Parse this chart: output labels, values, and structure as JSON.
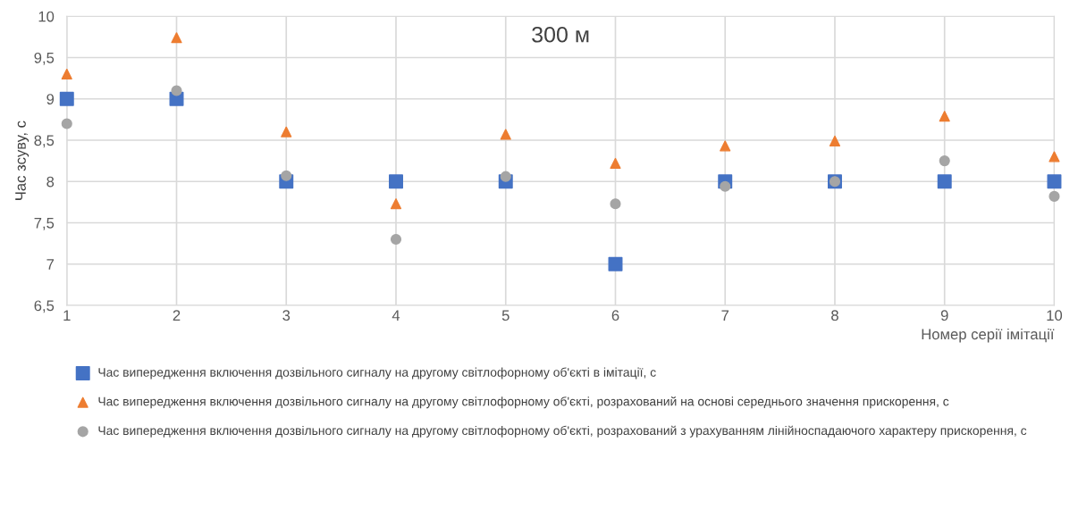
{
  "chart_data": {
    "type": "scatter",
    "ylabel": "Час зсуву, с",
    "xlabel": "Номер серії імітації",
    "annotations": [
      "300 м"
    ],
    "x": [
      1,
      2,
      3,
      4,
      5,
      6,
      7,
      8,
      9,
      10
    ],
    "series": [
      {
        "name": "Час випередження включення дозвільного сигналу на другому світлофорному об'єкті в імітації, с",
        "color": "#4472c4",
        "marker": "square",
        "values": [
          9,
          9,
          8,
          8,
          8,
          7,
          8,
          8,
          8,
          8
        ]
      },
      {
        "name": "Час випередження включення дозвільного сигналу на другому світлофорному об'єкті, розрахований на основі середнього значення прискорення, с",
        "color": "#ed7d31",
        "marker": "triangle",
        "values": [
          9.3,
          9.74,
          8.6,
          7.73,
          8.57,
          8.22,
          8.43,
          8.49,
          8.79,
          8.3
        ]
      },
      {
        "name": "Час випередження включення дозвільного сигналу на другому світлофорному об'єкті, розрахований з урахуванням лінійноспадаючого характеру прискорення, с",
        "color": "#a5a5a5",
        "marker": "circle",
        "values": [
          8.7,
          9.1,
          8.07,
          7.3,
          8.06,
          7.73,
          7.94,
          8.0,
          8.25,
          7.82
        ]
      }
    ],
    "xlim": [
      1,
      10
    ],
    "xticks": [
      1,
      2,
      3,
      4,
      5,
      6,
      7,
      8,
      9,
      10
    ],
    "ylim": [
      6.5,
      10
    ],
    "yticks": [
      {
        "value": 6.5,
        "label": "6,5"
      },
      7,
      {
        "value": 7.5,
        "label": "7,5"
      },
      8,
      {
        "value": 8.5,
        "label": "8,5"
      },
      9,
      {
        "value": 9.5,
        "label": "9,5"
      },
      10
    ],
    "grid": true,
    "legend": "bottom"
  }
}
